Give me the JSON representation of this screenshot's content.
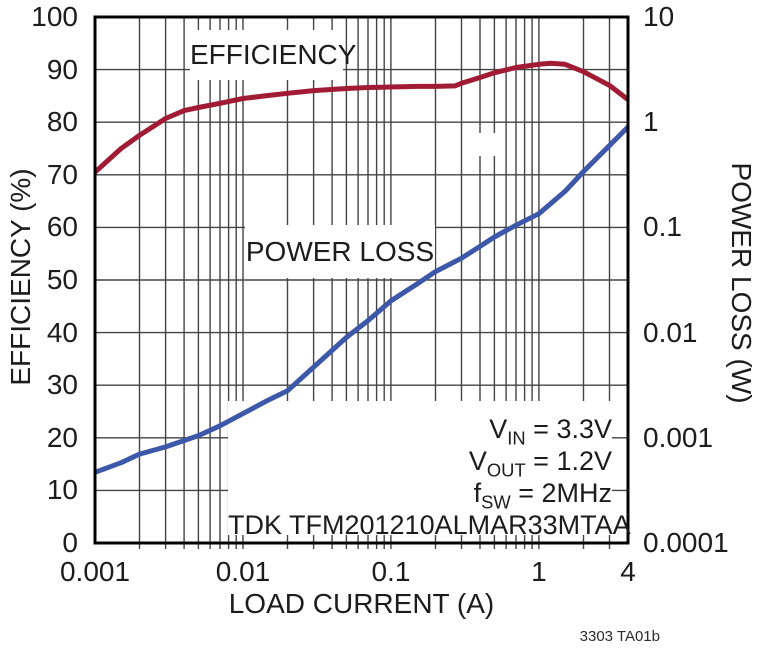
{
  "chart_data": {
    "type": "line",
    "xlabel": "LOAD CURRENT (A)",
    "ylabel_left": "EFFICIENCY (%)",
    "ylabel_right": "POWER LOSS (W)",
    "x_scale": "log",
    "y_right_scale": "log",
    "x_range": [
      0.001,
      4
    ],
    "y_left_range": [
      0,
      100
    ],
    "y_right_range": [
      0.0001,
      10
    ],
    "grid": true,
    "x_ticks": [
      "0.001",
      "0.01",
      "0.1",
      "1",
      "4"
    ],
    "x_tick_values": [
      0.001,
      0.01,
      0.1,
      1,
      4
    ],
    "y_left_ticks": [
      "100",
      "90",
      "80",
      "70",
      "60",
      "50",
      "40",
      "30",
      "20",
      "10",
      "0"
    ],
    "y_left_tick_values": [
      100,
      90,
      80,
      70,
      60,
      50,
      40,
      30,
      20,
      10,
      0
    ],
    "y_right_ticks": [
      "10",
      "1",
      "0.1",
      "0.01",
      "0.001",
      "0.0001"
    ],
    "y_right_tick_values": [
      10,
      1,
      0.1,
      0.01,
      0.001,
      0.0001
    ],
    "colors": {
      "grid": "#434343",
      "border": "#000000",
      "efficiency": "#A01B33",
      "power_loss": "#3D57A9"
    },
    "series": [
      {
        "name": "EFFICIENCY",
        "axis": "left",
        "color": "#A01B33",
        "points": [
          [
            0.001,
            70.5
          ],
          [
            0.0015,
            75.0
          ],
          [
            0.002,
            77.5
          ],
          [
            0.003,
            80.7
          ],
          [
            0.004,
            82.2
          ],
          [
            0.005,
            82.8
          ],
          [
            0.007,
            83.6
          ],
          [
            0.01,
            84.5
          ],
          [
            0.015,
            85.1
          ],
          [
            0.02,
            85.5
          ],
          [
            0.03,
            86.0
          ],
          [
            0.05,
            86.4
          ],
          [
            0.07,
            86.6
          ],
          [
            0.1,
            86.7
          ],
          [
            0.15,
            86.8
          ],
          [
            0.2,
            86.8
          ],
          [
            0.27,
            86.9
          ],
          [
            0.3,
            87.4
          ],
          [
            0.4,
            88.5
          ],
          [
            0.5,
            89.4
          ],
          [
            0.7,
            90.4
          ],
          [
            1.0,
            91.0
          ],
          [
            1.2,
            91.2
          ],
          [
            1.5,
            91.0
          ],
          [
            2.0,
            89.6
          ],
          [
            3.0,
            87.0
          ],
          [
            4.0,
            84.3
          ]
        ]
      },
      {
        "name": "POWER LOSS",
        "axis": "right",
        "color": "#3D57A9",
        "points": [
          [
            0.001,
            0.00047
          ],
          [
            0.0015,
            0.00058
          ],
          [
            0.002,
            0.0007
          ],
          [
            0.003,
            0.00082
          ],
          [
            0.005,
            0.00105
          ],
          [
            0.007,
            0.0013
          ],
          [
            0.01,
            0.0017
          ],
          [
            0.015,
            0.0023
          ],
          [
            0.02,
            0.0028
          ],
          [
            0.03,
            0.0047
          ],
          [
            0.05,
            0.009
          ],
          [
            0.07,
            0.013
          ],
          [
            0.1,
            0.02
          ],
          [
            0.15,
            0.029
          ],
          [
            0.2,
            0.038
          ],
          [
            0.3,
            0.051
          ],
          [
            0.4,
            0.066
          ],
          [
            0.5,
            0.081
          ],
          [
            0.7,
            0.105
          ],
          [
            1.0,
            0.135
          ],
          [
            1.5,
            0.22
          ],
          [
            2.0,
            0.34
          ],
          [
            3.0,
            0.6
          ],
          [
            4.0,
            0.9
          ]
        ]
      }
    ],
    "annotations": {
      "vin": {
        "base": "V",
        "sub": "IN",
        "rest": " = 3.3V"
      },
      "vout": {
        "base": "V",
        "sub": "OUT",
        "rest": " = 1.2V"
      },
      "fsw": {
        "base": "f",
        "sub": "SW",
        "rest": " = 2MHz"
      },
      "device": "TDK TFM201210ALMAR33MTAA"
    },
    "caption": "3303 TA01b"
  }
}
